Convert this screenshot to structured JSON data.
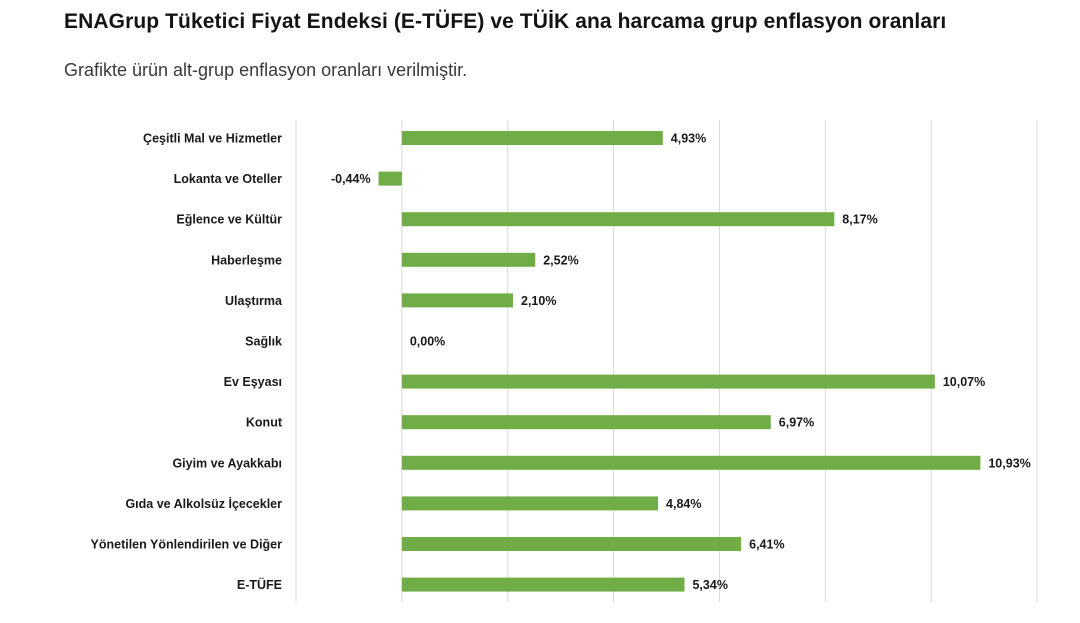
{
  "header": {
    "title": "ENAGrup Tüketici Fiyat Endeksi (E-TÜFE) ve TÜİK ana harcama grup enflasyon oranları",
    "subtitle": "Grafikte ürün alt-grup enflasyon oranları verilmiştir."
  },
  "chart_data": {
    "type": "bar",
    "orientation": "horizontal",
    "categories": [
      "Çeşitli Mal ve Hizmetler",
      "Lokanta ve Oteller",
      "Eğlence ve Kültür",
      "Haberleşme",
      "Ulaştırma",
      "Sağlık",
      "Ev Eşyası",
      "Konut",
      "Giyim ve Ayakkabı",
      "Gıda ve Alkolsüz İçecekler",
      "Yönetilen Yönlendirilen ve Diğer",
      "E-TÜFE"
    ],
    "values": [
      4.93,
      -0.44,
      8.17,
      2.52,
      2.1,
      0.0,
      10.07,
      6.97,
      10.93,
      4.84,
      6.41,
      5.34
    ],
    "value_labels": [
      "4,93%",
      "-0,44%",
      "8,17%",
      "2,52%",
      "2,10%",
      "0,00%",
      "10,07%",
      "6,97%",
      "10,93%",
      "4,84%",
      "6,41%",
      "5,34%"
    ],
    "xlim": [
      -2,
      12
    ],
    "grid": true,
    "bar_color": "#70ad47",
    "grid_color": "#d9d9d9"
  }
}
